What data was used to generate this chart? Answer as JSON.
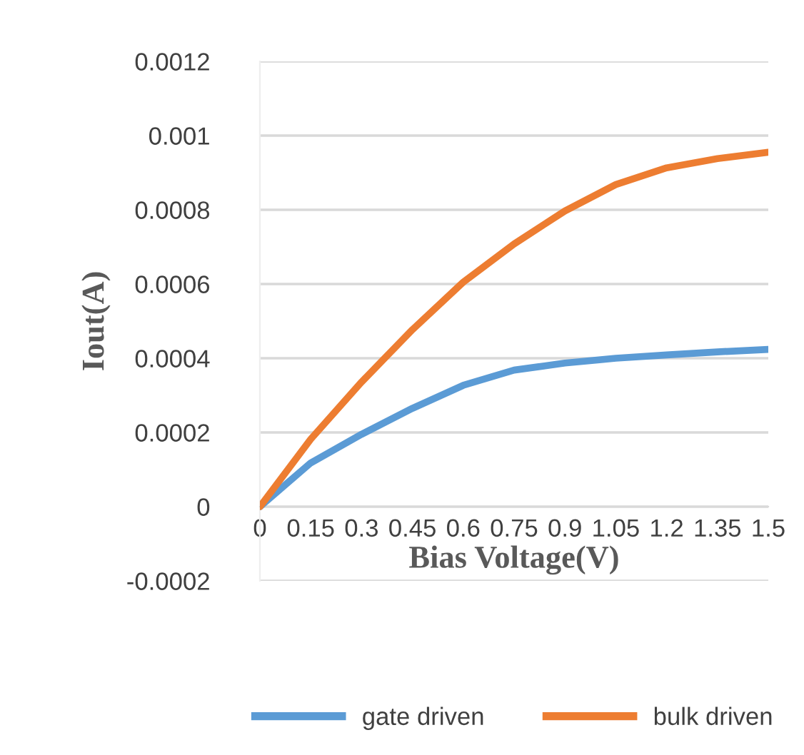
{
  "chart_data": {
    "type": "line",
    "xlabel": "Bias Voltage(V)",
    "ylabel": "Iout(A)",
    "x": [
      0,
      0.15,
      0.3,
      0.45,
      0.6,
      0.75,
      0.9,
      1.05,
      1.2,
      1.35,
      1.5
    ],
    "series": [
      {
        "name": "gate driven",
        "color": "#5b9bd5",
        "values": [
          0,
          0.000118,
          0.000195,
          0.000265,
          0.000327,
          0.000368,
          0.000387,
          0.0004,
          0.000409,
          0.000417,
          0.000424
        ]
      },
      {
        "name": "bulk driven",
        "color": "#ed7d31",
        "values": [
          0,
          0.000182,
          0.000336,
          0.000477,
          0.000605,
          0.000708,
          0.000797,
          0.000868,
          0.000913,
          0.000938,
          0.000955
        ]
      }
    ],
    "xlim": [
      0,
      1.5
    ],
    "xticks": [
      0,
      0.15,
      0.3,
      0.45,
      0.6,
      0.75,
      0.9,
      1.05,
      1.2,
      1.35,
      1.5
    ],
    "ylim": [
      -0.0002,
      0.0012
    ],
    "yticks": [
      -0.0002,
      0,
      0.0002,
      0.0004,
      0.0006,
      0.0008,
      0.001,
      0.0012
    ],
    "grid": "y",
    "legend": "bottom",
    "marker": "none",
    "line_style": "solid"
  }
}
